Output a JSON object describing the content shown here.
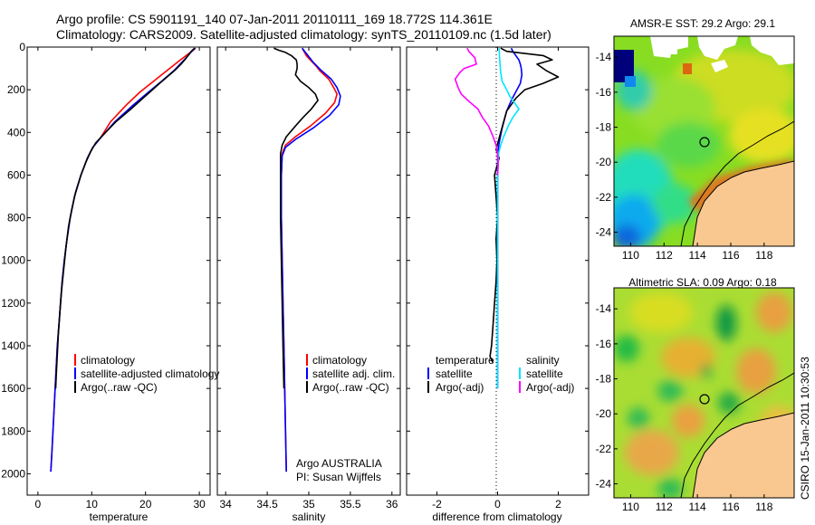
{
  "header": {
    "line1": "Argo profile: CS 5901191_140 07-Jan-2011 20110111_169 18.772S 114.361E",
    "line2": "Climatology: CARS2009. Satellite-adjusted climatology: synTS_20110109.nc (1.5d later)"
  },
  "colors": {
    "climatology": "#ff0000",
    "satellite": "#0000ff",
    "argo": "#000000",
    "satellite_diff": "#00e5ff",
    "argo_adj_diff": "#ff00ff",
    "land": "#f8c890"
  },
  "chart_data": [
    {
      "type": "line",
      "xlabel": "temperature",
      "xlim": [
        -2,
        32
      ],
      "ylim": [
        2100,
        0
      ],
      "xticks": [
        0,
        10,
        20,
        30
      ],
      "yticks": [
        0,
        200,
        400,
        600,
        800,
        1000,
        1200,
        1400,
        1600,
        1800,
        2000
      ],
      "legend": [
        "climatology",
        "satellite-adjusted climatology",
        "Argo(..raw -QC)"
      ],
      "series": [
        {
          "name": "climatology",
          "color": "#ff0000",
          "points": [
            [
              29.3,
              5
            ],
            [
              28.6,
              20
            ],
            [
              26.5,
              60
            ],
            [
              24,
              110
            ],
            [
              21.5,
              160
            ],
            [
              19,
              210
            ],
            [
              16.5,
              270
            ],
            [
              13.5,
              350
            ],
            [
              11.5,
              430
            ],
            [
              10.2,
              470
            ],
            [
              9.2,
              520
            ],
            [
              8,
              600
            ],
            [
              6.8,
              700
            ],
            [
              6,
              800
            ],
            [
              5.4,
              900
            ],
            [
              4.9,
              1000
            ],
            [
              4.5,
              1100
            ],
            [
              4.2,
              1200
            ],
            [
              3.9,
              1300
            ],
            [
              3.6,
              1400
            ],
            [
              3.4,
              1500
            ],
            [
              3.2,
              1600
            ],
            [
              3,
              1700
            ],
            [
              2.8,
              1800
            ],
            [
              2.6,
              1900
            ],
            [
              2.4,
              1990
            ]
          ]
        },
        {
          "name": "satellite-adjusted climatology",
          "color": "#0000ff",
          "points": [
            [
              29.2,
              5
            ],
            [
              28.6,
              20
            ],
            [
              27.2,
              60
            ],
            [
              25.3,
              110
            ],
            [
              23,
              160
            ],
            [
              20.6,
              210
            ],
            [
              17.8,
              270
            ],
            [
              14.3,
              350
            ],
            [
              11.5,
              430
            ],
            [
              10.2,
              470
            ],
            [
              9.2,
              520
            ],
            [
              8,
              600
            ],
            [
              6.8,
              700
            ],
            [
              6,
              800
            ],
            [
              5.4,
              900
            ],
            [
              4.9,
              1000
            ],
            [
              4.5,
              1100
            ],
            [
              4.2,
              1200
            ],
            [
              3.9,
              1300
            ],
            [
              3.6,
              1400
            ],
            [
              3.4,
              1500
            ],
            [
              3.2,
              1600
            ],
            [
              3,
              1700
            ],
            [
              2.8,
              1800
            ],
            [
              2.6,
              1900
            ],
            [
              2.4,
              1990
            ]
          ]
        },
        {
          "name": "Argo(..raw -QC)",
          "color": "#000000",
          "points": [
            [
              29.1,
              5
            ],
            [
              28.5,
              20
            ],
            [
              27.6,
              50
            ],
            [
              26.6,
              80
            ],
            [
              25.4,
              110
            ],
            [
              24,
              140
            ],
            [
              22.6,
              170
            ],
            [
              21.3,
              200
            ],
            [
              19.5,
              240
            ],
            [
              17.3,
              290
            ],
            [
              14.5,
              350
            ],
            [
              12.2,
              410
            ],
            [
              10.7,
              450
            ],
            [
              9.8,
              490
            ],
            [
              8.9,
              540
            ],
            [
              8,
              600
            ],
            [
              7,
              680
            ],
            [
              6.3,
              760
            ],
            [
              5.7,
              840
            ],
            [
              5.2,
              940
            ],
            [
              4.8,
              1040
            ],
            [
              4.4,
              1140
            ],
            [
              4.1,
              1240
            ],
            [
              3.8,
              1340
            ],
            [
              3.6,
              1440
            ],
            [
              3.4,
              1540
            ],
            [
              3.3,
              1600
            ]
          ]
        }
      ]
    },
    {
      "type": "line",
      "xlabel": "salinity",
      "xlim": [
        33.9,
        36.1
      ],
      "ylim": [
        2100,
        0
      ],
      "xticks": [
        34,
        34.5,
        35,
        35.5,
        36
      ],
      "legend": [
        "climatology",
        "satellite adj. clim.",
        "Argo(..raw -QC)"
      ],
      "annotation": [
        "Argo AUSTRALIA",
        "PI: Susan Wijffels"
      ],
      "series": [
        {
          "name": "climatology",
          "color": "#ff0000",
          "points": [
            [
              34.92,
              5
            ],
            [
              34.97,
              40
            ],
            [
              35.04,
              70
            ],
            [
              35.09,
              90
            ],
            [
              35.13,
              110
            ],
            [
              35.24,
              150
            ],
            [
              35.3,
              190
            ],
            [
              35.34,
              220
            ],
            [
              35.31,
              260
            ],
            [
              35.2,
              310
            ],
            [
              35.02,
              370
            ],
            [
              34.84,
              420
            ],
            [
              34.72,
              460
            ],
            [
              34.68,
              500
            ],
            [
              34.67,
              600
            ],
            [
              34.67,
              800
            ],
            [
              34.68,
              1000
            ],
            [
              34.69,
              1200
            ],
            [
              34.7,
              1400
            ],
            [
              34.71,
              1600
            ],
            [
              34.72,
              1800
            ],
            [
              34.73,
              1990
            ]
          ]
        },
        {
          "name": "satellite adj. clim.",
          "color": "#0000ff",
          "points": [
            [
              34.92,
              5
            ],
            [
              34.99,
              40
            ],
            [
              35.05,
              70
            ],
            [
              35.1,
              90
            ],
            [
              35.15,
              110
            ],
            [
              35.27,
              150
            ],
            [
              35.34,
              190
            ],
            [
              35.38,
              230
            ],
            [
              35.36,
              270
            ],
            [
              35.25,
              320
            ],
            [
              35.05,
              380
            ],
            [
              34.85,
              430
            ],
            [
              34.72,
              470
            ],
            [
              34.68,
              510
            ],
            [
              34.67,
              600
            ],
            [
              34.67,
              800
            ],
            [
              34.68,
              1000
            ],
            [
              34.69,
              1200
            ],
            [
              34.7,
              1400
            ],
            [
              34.71,
              1600
            ],
            [
              34.72,
              1800
            ],
            [
              34.73,
              1990
            ]
          ]
        },
        {
          "name": "Argo(..raw -QC)",
          "color": "#000000",
          "points": [
            [
              34.58,
              5
            ],
            [
              34.64,
              15
            ],
            [
              34.72,
              25
            ],
            [
              34.79,
              40
            ],
            [
              34.85,
              60
            ],
            [
              34.86,
              80
            ],
            [
              34.86,
              100
            ],
            [
              34.84,
              130
            ],
            [
              34.9,
              160
            ],
            [
              35.0,
              190
            ],
            [
              35.08,
              220
            ],
            [
              35.11,
              250
            ],
            [
              35.03,
              290
            ],
            [
              34.93,
              330
            ],
            [
              34.84,
              370
            ],
            [
              34.73,
              420
            ],
            [
              34.68,
              460
            ],
            [
              34.66,
              500
            ],
            [
              34.66,
              600
            ],
            [
              34.66,
              800
            ],
            [
              34.67,
              1000
            ],
            [
              34.68,
              1200
            ],
            [
              34.69,
              1400
            ],
            [
              34.7,
              1600
            ]
          ]
        }
      ]
    },
    {
      "type": "line",
      "xlabel": "difference from climatology",
      "xlim": [
        -3,
        3
      ],
      "ylim": [
        2100,
        0
      ],
      "xticks": [
        -2,
        0,
        2
      ],
      "legend_temperature": {
        "title": "temperature",
        "items": [
          "satellite",
          "Argo(-adj)"
        ]
      },
      "legend_salinity": {
        "title": "salinity",
        "items": [
          "satellite",
          "Argo(-adj)"
        ]
      },
      "series": [
        {
          "name": "temperature satellite",
          "color": "#0000ff",
          "points": [
            [
              0.45,
              5
            ],
            [
              0.5,
              20
            ],
            [
              0.6,
              40
            ],
            [
              0.7,
              60
            ],
            [
              0.75,
              80
            ],
            [
              0.78,
              100
            ],
            [
              0.8,
              130
            ],
            [
              0.75,
              170
            ],
            [
              0.6,
              210
            ],
            [
              0.45,
              250
            ],
            [
              0.3,
              300
            ],
            [
              0.15,
              380
            ],
            [
              0.05,
              450
            ],
            [
              0,
              500
            ],
            [
              0,
              600
            ],
            [
              0,
              800
            ],
            [
              0,
              1000
            ],
            [
              0,
              1400
            ],
            [
              0,
              1600
            ]
          ]
        },
        {
          "name": "temperature Argo(-adj)",
          "color": "#000000",
          "points": [
            [
              0.1,
              5
            ],
            [
              0.3,
              20
            ],
            [
              0.9,
              30
            ],
            [
              1.5,
              40
            ],
            [
              1.8,
              60
            ],
            [
              1.3,
              80
            ],
            [
              1.6,
              110
            ],
            [
              2.0,
              140
            ],
            [
              1.5,
              170
            ],
            [
              0.9,
              200
            ],
            [
              0.6,
              240
            ],
            [
              0.3,
              300
            ],
            [
              0.1,
              400
            ],
            [
              -0.05,
              480
            ],
            [
              0.05,
              520
            ],
            [
              -0.1,
              600
            ],
            [
              -0.05,
              700
            ],
            [
              0,
              800
            ],
            [
              -0.05,
              900
            ],
            [
              -0.02,
              1000
            ],
            [
              -0.05,
              1100
            ],
            [
              -0.1,
              1200
            ],
            [
              -0.15,
              1300
            ],
            [
              -0.2,
              1400
            ],
            [
              -0.25,
              1450
            ],
            [
              -0.15,
              1480
            ]
          ]
        },
        {
          "name": "salinity satellite",
          "color": "#00e5ff",
          "points": [
            [
              0.05,
              5
            ],
            [
              0.06,
              40
            ],
            [
              0.08,
              80
            ],
            [
              0.1,
              120
            ],
            [
              0.15,
              160
            ],
            [
              0.3,
              200
            ],
            [
              0.4,
              230
            ],
            [
              0.55,
              260
            ],
            [
              0.7,
              290
            ],
            [
              0.5,
              330
            ],
            [
              0.35,
              370
            ],
            [
              0.2,
              420
            ],
            [
              0.1,
              460
            ],
            [
              0.03,
              500
            ],
            [
              0,
              600
            ],
            [
              0,
              800
            ],
            [
              0,
              1000
            ],
            [
              0,
              1400
            ],
            [
              0,
              1600
            ]
          ]
        },
        {
          "name": "salinity Argo(-adj)",
          "color": "#ff00ff",
          "points": [
            [
              -1.0,
              5
            ],
            [
              -0.95,
              20
            ],
            [
              -0.75,
              50
            ],
            [
              -0.7,
              80
            ],
            [
              -1.1,
              100
            ],
            [
              -1.25,
              120
            ],
            [
              -1.4,
              150
            ],
            [
              -1.3,
              190
            ],
            [
              -1.2,
              220
            ],
            [
              -0.9,
              260
            ],
            [
              -0.65,
              290
            ],
            [
              -0.5,
              330
            ],
            [
              -0.3,
              370
            ],
            [
              -0.15,
              420
            ],
            [
              -0.05,
              460
            ],
            [
              0,
              500
            ],
            [
              0.02,
              550
            ],
            [
              0,
              600
            ]
          ]
        }
      ]
    }
  ],
  "maps": [
    {
      "title": "AMSR-E SST: 29.2 Argo: 29.1",
      "xticks": [
        110,
        112,
        114,
        116,
        118
      ],
      "yticks": [
        -14,
        -16,
        -18,
        -20,
        -22,
        -24
      ]
    },
    {
      "title": "Altimetric SLA: 0.09 Argo: 0.18",
      "xticks": [
        110,
        112,
        114,
        116,
        118
      ],
      "yticks": [
        -14,
        -16,
        -18,
        -20,
        -22,
        -24
      ]
    }
  ],
  "argo_position": {
    "lon": 114.361,
    "lat": -18.772
  },
  "stamp": "CSIRO 15-Jan-2011 10:30:53"
}
